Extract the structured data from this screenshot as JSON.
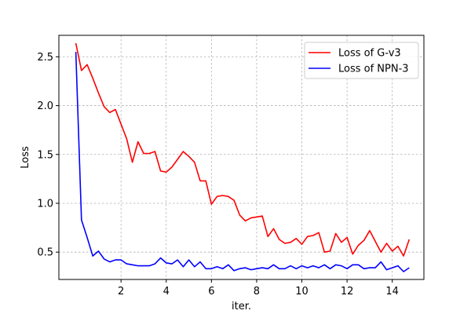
{
  "chart_data": {
    "type": "line",
    "title": "",
    "xlabel": "iter.",
    "ylabel": "Loss",
    "xlim": [
      -0.75,
      15.4
    ],
    "ylim": [
      0.22,
      2.72
    ],
    "xticks": [
      2,
      4,
      6,
      8,
      10,
      12,
      14
    ],
    "yticks": [
      0.5,
      1.0,
      1.5,
      2.0,
      2.5
    ],
    "xtick_labels": [
      "2",
      "4",
      "6",
      "8",
      "10",
      "12",
      "14"
    ],
    "ytick_labels": [
      "0.5",
      "1.0",
      "1.5",
      "2.0",
      "2.5"
    ],
    "grid": true,
    "legend_position": "top-right",
    "series": [
      {
        "name": "Loss of G-v3",
        "color": "#ff0000",
        "x": [
          0.0,
          0.25,
          0.5,
          0.75,
          1.0,
          1.25,
          1.5,
          1.75,
          2.0,
          2.25,
          2.5,
          2.75,
          3.0,
          3.25,
          3.5,
          3.75,
          4.0,
          4.25,
          4.5,
          4.75,
          5.0,
          5.25,
          5.5,
          5.75,
          6.0,
          6.25,
          6.5,
          6.75,
          7.0,
          7.25,
          7.5,
          7.75,
          8.0,
          8.25,
          8.5,
          8.75,
          9.0,
          9.25,
          9.5,
          9.75,
          10.0,
          10.25,
          10.5,
          10.75,
          11.0,
          11.25,
          11.5,
          11.75,
          12.0,
          12.25,
          12.5,
          12.75,
          13.0,
          13.25,
          13.5,
          13.75,
          14.0,
          14.25,
          14.5,
          14.75
        ],
        "values": [
          2.64,
          2.36,
          2.42,
          2.28,
          2.13,
          1.99,
          1.93,
          1.96,
          1.81,
          1.66,
          1.42,
          1.63,
          1.51,
          1.51,
          1.53,
          1.33,
          1.32,
          1.37,
          1.45,
          1.53,
          1.48,
          1.42,
          1.23,
          1.23,
          0.99,
          1.07,
          1.08,
          1.07,
          1.03,
          0.88,
          0.82,
          0.85,
          0.86,
          0.87,
          0.66,
          0.74,
          0.63,
          0.59,
          0.6,
          0.64,
          0.58,
          0.66,
          0.67,
          0.7,
          0.5,
          0.51,
          0.69,
          0.6,
          0.65,
          0.48,
          0.57,
          0.62,
          0.72,
          0.61,
          0.5,
          0.59,
          0.51,
          0.56,
          0.46,
          0.63
        ]
      },
      {
        "name": "Loss of NPN-3",
        "color": "#0000ff",
        "x": [
          0.0,
          0.25,
          0.5,
          0.75,
          1.0,
          1.25,
          1.5,
          1.75,
          2.0,
          2.25,
          2.5,
          2.75,
          3.0,
          3.25,
          3.5,
          3.75,
          4.0,
          4.25,
          4.5,
          4.75,
          5.0,
          5.25,
          5.5,
          5.75,
          6.0,
          6.25,
          6.5,
          6.75,
          7.0,
          7.25,
          7.5,
          7.75,
          8.0,
          8.25,
          8.5,
          8.75,
          9.0,
          9.25,
          9.5,
          9.75,
          10.0,
          10.25,
          10.5,
          10.75,
          11.0,
          11.25,
          11.5,
          11.75,
          12.0,
          12.25,
          12.5,
          12.75,
          13.0,
          13.25,
          13.5,
          13.75,
          14.0,
          14.25,
          14.5,
          14.75
        ],
        "values": [
          2.55,
          0.83,
          0.65,
          0.46,
          0.51,
          0.43,
          0.4,
          0.42,
          0.42,
          0.38,
          0.37,
          0.36,
          0.36,
          0.36,
          0.38,
          0.44,
          0.39,
          0.38,
          0.42,
          0.35,
          0.42,
          0.35,
          0.4,
          0.33,
          0.33,
          0.35,
          0.33,
          0.37,
          0.31,
          0.33,
          0.34,
          0.32,
          0.33,
          0.34,
          0.33,
          0.37,
          0.33,
          0.33,
          0.36,
          0.33,
          0.36,
          0.34,
          0.36,
          0.34,
          0.37,
          0.33,
          0.37,
          0.36,
          0.33,
          0.37,
          0.37,
          0.33,
          0.34,
          0.34,
          0.4,
          0.32,
          0.34,
          0.36,
          0.3,
          0.34
        ]
      }
    ]
  }
}
